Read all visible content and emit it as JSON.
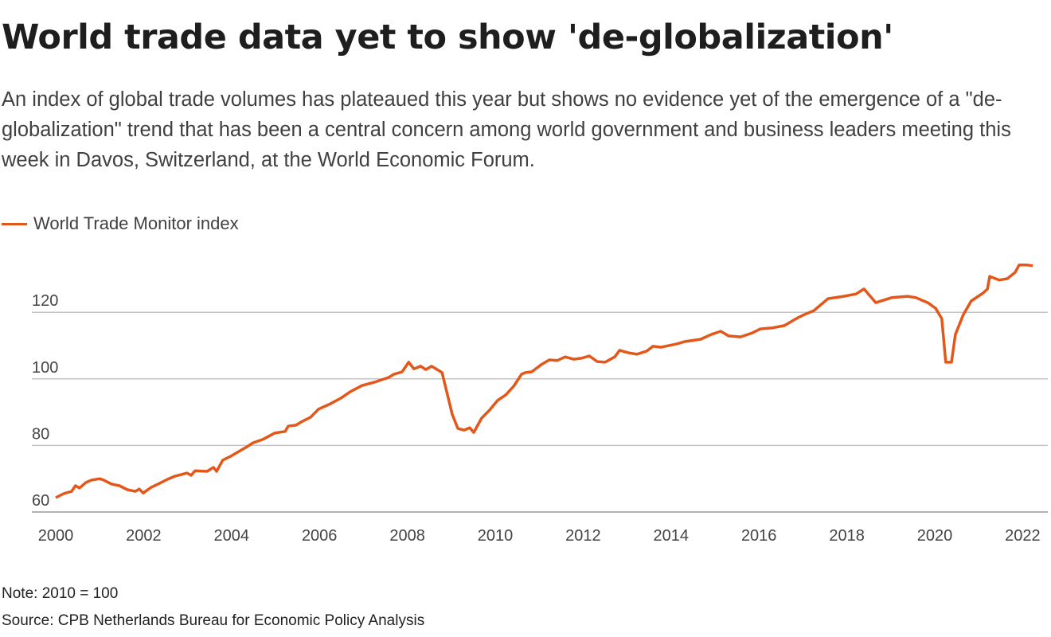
{
  "title": "World trade data yet to show 'de-globalization'",
  "subtitle": "An index of global trade volumes has plateaued this year but shows no evidence yet of the emergence of a \"de-globalization\" trend that has been a central concern among world government and business leaders meeting this week in Davos, Switzerland, at the World Economic Forum.",
  "note": "Note: 2010 = 100",
  "source": "Source: CPB Netherlands Bureau for Economic Policy Analysis",
  "chart_data": {
    "type": "line",
    "xlabel": "",
    "ylabel": "",
    "xlim": [
      2000,
      2022.3
    ],
    "ylim": [
      60,
      136
    ],
    "grid": true,
    "legend": "top-left",
    "xticks": [
      "2000",
      "2002",
      "2004",
      "2006",
      "2008",
      "2010",
      "2012",
      "2014",
      "2016",
      "2018",
      "2020",
      "2022"
    ],
    "yticks": [
      "60",
      "80",
      "100",
      "120"
    ],
    "series": [
      {
        "name": "World Trade Monitor index",
        "color": "#e4571b",
        "points": [
          [
            2000.0,
            64.3
          ],
          [
            2000.18,
            65.5
          ],
          [
            2000.36,
            66.2
          ],
          [
            2000.45,
            67.9
          ],
          [
            2000.54,
            67.2
          ],
          [
            2000.69,
            68.9
          ],
          [
            2000.82,
            69.6
          ],
          [
            2001.0,
            70.0
          ],
          [
            2001.09,
            69.6
          ],
          [
            2001.27,
            68.4
          ],
          [
            2001.45,
            67.9
          ],
          [
            2001.63,
            66.7
          ],
          [
            2001.81,
            66.2
          ],
          [
            2001.9,
            66.9
          ],
          [
            2001.99,
            65.7
          ],
          [
            2002.17,
            67.4
          ],
          [
            2002.36,
            68.6
          ],
          [
            2002.54,
            69.8
          ],
          [
            2002.72,
            70.8
          ],
          [
            2002.99,
            71.7
          ],
          [
            2003.08,
            71.0
          ],
          [
            2003.17,
            72.4
          ],
          [
            2003.44,
            72.2
          ],
          [
            2003.59,
            73.4
          ],
          [
            2003.66,
            72.2
          ],
          [
            2003.8,
            75.6
          ],
          [
            2003.99,
            76.8
          ],
          [
            2004.17,
            78.2
          ],
          [
            2004.35,
            79.6
          ],
          [
            2004.49,
            80.8
          ],
          [
            2004.71,
            81.8
          ],
          [
            2004.98,
            83.7
          ],
          [
            2005.22,
            84.2
          ],
          [
            2005.29,
            85.8
          ],
          [
            2005.47,
            86.1
          ],
          [
            2005.58,
            87.0
          ],
          [
            2005.8,
            88.5
          ],
          [
            2005.98,
            90.9
          ],
          [
            2006.25,
            92.5
          ],
          [
            2006.49,
            94.2
          ],
          [
            2006.7,
            96.1
          ],
          [
            2006.97,
            98.0
          ],
          [
            2007.25,
            99.0
          ],
          [
            2007.57,
            100.4
          ],
          [
            2007.7,
            101.4
          ],
          [
            2007.88,
            102.1
          ],
          [
            2008.03,
            105.0
          ],
          [
            2008.15,
            103.0
          ],
          [
            2008.3,
            103.8
          ],
          [
            2008.42,
            102.8
          ],
          [
            2008.55,
            103.8
          ],
          [
            2008.79,
            101.9
          ],
          [
            2008.91,
            95.4
          ],
          [
            2009.02,
            89.4
          ],
          [
            2009.15,
            85.1
          ],
          [
            2009.29,
            84.6
          ],
          [
            2009.42,
            85.3
          ],
          [
            2009.51,
            83.9
          ],
          [
            2009.69,
            88.2
          ],
          [
            2009.87,
            90.6
          ],
          [
            2010.05,
            93.5
          ],
          [
            2010.24,
            95.2
          ],
          [
            2010.42,
            97.8
          ],
          [
            2010.6,
            101.4
          ],
          [
            2010.69,
            101.9
          ],
          [
            2010.83,
            102.1
          ],
          [
            2011.05,
            104.3
          ],
          [
            2011.23,
            105.7
          ],
          [
            2011.41,
            105.5
          ],
          [
            2011.59,
            106.6
          ],
          [
            2011.78,
            105.9
          ],
          [
            2011.96,
            106.2
          ],
          [
            2012.14,
            106.9
          ],
          [
            2012.32,
            105.2
          ],
          [
            2012.5,
            105.0
          ],
          [
            2012.72,
            106.6
          ],
          [
            2012.83,
            108.6
          ],
          [
            2013.01,
            107.9
          ],
          [
            2013.22,
            107.4
          ],
          [
            2013.44,
            108.3
          ],
          [
            2013.59,
            109.8
          ],
          [
            2013.77,
            109.5
          ],
          [
            2014.13,
            110.5
          ],
          [
            2014.31,
            111.2
          ],
          [
            2014.67,
            111.9
          ],
          [
            2014.91,
            113.3
          ],
          [
            2015.13,
            114.3
          ],
          [
            2015.31,
            112.9
          ],
          [
            2015.58,
            112.6
          ],
          [
            2015.85,
            113.8
          ],
          [
            2016.03,
            115.0
          ],
          [
            2016.3,
            115.3
          ],
          [
            2016.58,
            116.0
          ],
          [
            2016.85,
            118.1
          ],
          [
            2017.03,
            119.3
          ],
          [
            2017.25,
            120.5
          ],
          [
            2017.57,
            124.1
          ],
          [
            2017.93,
            124.8
          ],
          [
            2018.21,
            125.5
          ],
          [
            2018.39,
            127.0
          ],
          [
            2018.66,
            122.9
          ],
          [
            2019.02,
            124.4
          ],
          [
            2019.38,
            124.8
          ],
          [
            2019.57,
            124.4
          ],
          [
            2019.84,
            122.9
          ],
          [
            2020.02,
            121.2
          ],
          [
            2020.16,
            118.1
          ],
          [
            2020.25,
            105.0
          ],
          [
            2020.38,
            105.0
          ],
          [
            2020.47,
            113.3
          ],
          [
            2020.65,
            119.3
          ],
          [
            2020.83,
            123.4
          ],
          [
            2021.1,
            125.8
          ],
          [
            2021.2,
            127.0
          ],
          [
            2021.25,
            130.8
          ],
          [
            2021.47,
            129.7
          ],
          [
            2021.65,
            130.1
          ],
          [
            2021.83,
            132.0
          ],
          [
            2021.92,
            134.2
          ],
          [
            2022.1,
            134.2
          ],
          [
            2022.23,
            134.0
          ]
        ]
      }
    ]
  }
}
